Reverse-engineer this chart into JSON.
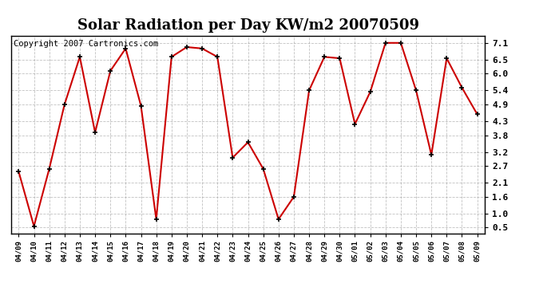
{
  "title": "Solar Radiation per Day KW/m2 20070509",
  "copyright": "Copyright 2007 Cartronics.com",
  "labels": [
    "04/09",
    "04/10",
    "04/11",
    "04/12",
    "04/13",
    "04/14",
    "04/15",
    "04/16",
    "04/17",
    "04/18",
    "04/19",
    "04/20",
    "04/21",
    "04/22",
    "04/23",
    "04/24",
    "04/25",
    "04/26",
    "04/27",
    "04/28",
    "04/29",
    "04/30",
    "05/01",
    "05/02",
    "05/03",
    "05/04",
    "05/05",
    "05/06",
    "05/07",
    "05/08",
    "05/09"
  ],
  "values": [
    2.5,
    0.55,
    2.6,
    4.9,
    6.6,
    3.9,
    6.1,
    6.9,
    4.85,
    0.8,
    6.6,
    6.95,
    6.9,
    6.6,
    3.0,
    3.55,
    2.6,
    0.8,
    1.6,
    5.4,
    6.6,
    6.55,
    4.2,
    5.35,
    7.1,
    7.1,
    5.4,
    3.1,
    6.55,
    5.5,
    4.55
  ],
  "line_color": "#cc0000",
  "marker_color": "#000000",
  "bg_color": "#ffffff",
  "plot_bg_color": "#ffffff",
  "grid_color": "#999999",
  "yticks": [
    0.5,
    1.0,
    1.6,
    2.1,
    2.7,
    3.2,
    3.8,
    4.3,
    4.9,
    5.4,
    6.0,
    6.5,
    7.1
  ],
  "ylim": [
    0.3,
    7.35
  ],
  "title_fontsize": 13,
  "copyright_fontsize": 7.5
}
